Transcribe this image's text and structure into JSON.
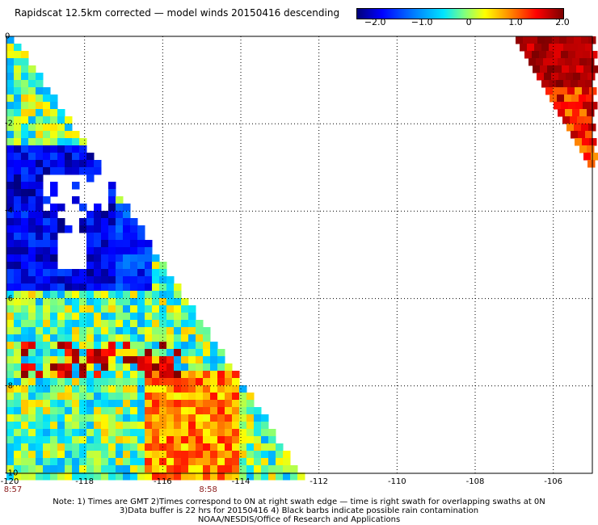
{
  "title": "Rapidscat 12.5km corrected — model winds 20150416 descending",
  "colorbar": {
    "ticks": [
      {
        "label": "−2.0",
        "value": -2.0
      },
      {
        "label": "−1.0",
        "value": -1.0
      },
      {
        "label": "0",
        "value": 0
      },
      {
        "label": "1.0",
        "value": 1.0
      },
      {
        "label": "2.0",
        "value": 2.0
      }
    ],
    "min": -2.4,
    "max": 2.0
  },
  "map": {
    "lon_range": [
      -120,
      -105
    ],
    "lat_range": [
      -10,
      0
    ],
    "x_ticks": [
      "-120",
      "-118",
      "-116",
      "-114",
      "-112",
      "-110",
      "-108",
      "-106"
    ],
    "y_ticks": [
      "0",
      "-2",
      "-4",
      "-6",
      "-8",
      "-10"
    ],
    "times": [
      {
        "label": "8:57",
        "lon": -120
      },
      {
        "label": "8:58",
        "lon": -115
      }
    ]
  },
  "notes": [
    "Note: 1) Times are GMT 2)Times correspond to 0N at right swath edge — time is right swath for overlapping swaths at 0N",
    "3)Data buffer is 22 hrs for 20150416 4) Black barbs indicate possible rain contamination",
    "NOAA/NESDIS/Office of Research and Applications"
  ]
}
